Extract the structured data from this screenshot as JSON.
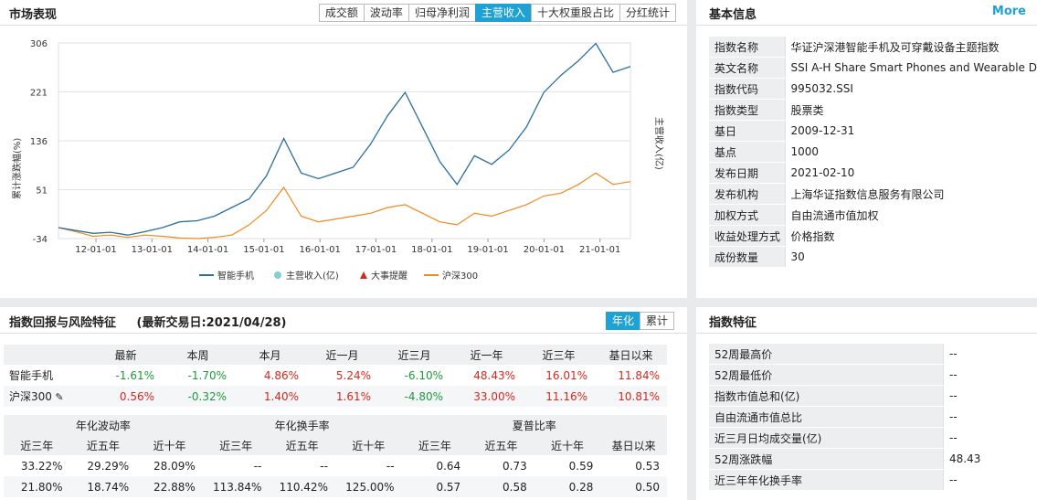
{
  "market": {
    "title": "市场表现",
    "tabs": [
      "成交额",
      "波动率",
      "归母净利润",
      "主营收入",
      "十大权重股占比",
      "分红统计"
    ],
    "active_tab": 3,
    "y_left_label": "累计涨跌幅(%)",
    "y_right_label": "主营收入(亿)",
    "y_ticks": [
      "306",
      "221",
      "136",
      "51",
      "-34"
    ],
    "x_ticks": [
      "12-01-01",
      "13-01-01",
      "14-01-01",
      "15-01-01",
      "16-01-01",
      "17-01-01",
      "18-01-01",
      "19-01-01",
      "20-01-01",
      "21-01-01"
    ],
    "legend": [
      "智能手机",
      "主营收入(亿)",
      "大事提醒",
      "沪深300"
    ]
  },
  "chart_data": {
    "type": "line",
    "x": [
      "2011-06",
      "2011-10",
      "2012-01",
      "2012-05",
      "2012-09",
      "2013-01",
      "2013-05",
      "2013-09",
      "2014-01",
      "2014-05",
      "2014-09",
      "2015-01",
      "2015-03",
      "2015-06",
      "2015-08",
      "2016-01",
      "2016-06",
      "2016-12",
      "2017-06",
      "2017-12",
      "2018-03",
      "2018-06",
      "2018-10",
      "2019-01",
      "2019-04",
      "2019-08",
      "2019-12",
      "2020-02",
      "2020-07",
      "2020-10",
      "2021-01",
      "2021-02",
      "2021-03",
      "2021-04"
    ],
    "series": [
      {
        "name": "智能手机",
        "values": [
          -15,
          -20,
          -25,
          -23,
          -28,
          -22,
          -15,
          -5,
          -3,
          5,
          20,
          35,
          75,
          140,
          80,
          70,
          80,
          90,
          130,
          180,
          220,
          160,
          100,
          60,
          110,
          95,
          120,
          160,
          220,
          250,
          275,
          305,
          255,
          265
        ]
      },
      {
        "name": "沪深300",
        "values": [
          -15,
          -22,
          -30,
          -28,
          -32,
          -28,
          -30,
          -33,
          -34,
          -32,
          -28,
          -10,
          15,
          55,
          5,
          -5,
          0,
          5,
          10,
          20,
          25,
          10,
          -5,
          -10,
          10,
          5,
          15,
          25,
          40,
          45,
          60,
          80,
          60,
          65
        ]
      }
    ],
    "ylim": [
      -34,
      306
    ]
  },
  "basic": {
    "title": "基本信息",
    "more": "More",
    "rows": [
      {
        "k": "指数名称",
        "v": "华证沪深港智能手机及可穿戴设备主题指数"
      },
      {
        "k": "英文名称",
        "v": "SSI A-H Share Smart Phones and Wearable D"
      },
      {
        "k": "指数代码",
        "v": "995032.SSI"
      },
      {
        "k": "指数类型",
        "v": "股票类"
      },
      {
        "k": "基日",
        "v": "2009-12-31"
      },
      {
        "k": "基点",
        "v": "1000"
      },
      {
        "k": "发布日期",
        "v": "2021-02-10"
      },
      {
        "k": "发布机构",
        "v": "上海华证指数信息服务有限公司"
      },
      {
        "k": "加权方式",
        "v": "自由流通市值加权"
      },
      {
        "k": "收益处理方式",
        "v": "价格指数"
      },
      {
        "k": "成份数量",
        "v": "30"
      }
    ]
  },
  "returns": {
    "title": "指数回报与风险特征",
    "subtitle": "(最新交易日:2021/04/28)",
    "toggle": [
      "年化",
      "累计"
    ],
    "headers": [
      "最新",
      "本周",
      "本月",
      "近一月",
      "近三月",
      "近一年",
      "近三年",
      "基日以来"
    ],
    "rows": [
      {
        "name": "智能手机",
        "values": [
          "-1.61%",
          "-1.70%",
          "4.86%",
          "5.24%",
          "-6.10%",
          "48.43%",
          "16.01%",
          "11.84%"
        ]
      },
      {
        "name": "沪深300",
        "values": [
          "0.56%",
          "-0.32%",
          "1.40%",
          "1.61%",
          "-4.80%",
          "33.00%",
          "11.16%",
          "10.81%"
        ]
      }
    ],
    "group_headers": [
      "年化波动率",
      "年化换手率",
      "夏普比率"
    ],
    "sub_headers": [
      "近三年",
      "近五年",
      "近十年",
      "近三年",
      "近五年",
      "近十年",
      "近三年",
      "近五年",
      "近十年",
      "基日以来"
    ],
    "risk_rows": [
      [
        "33.22%",
        "29.29%",
        "28.09%",
        "--",
        "--",
        "--",
        "0.64",
        "0.73",
        "0.59",
        "0.53"
      ],
      [
        "21.80%",
        "18.74%",
        "22.88%",
        "113.84%",
        "110.42%",
        "125.00%",
        "0.57",
        "0.58",
        "0.28",
        "0.50"
      ]
    ]
  },
  "features": {
    "title": "指数特征",
    "rows": [
      {
        "k": "52周最高价",
        "v": "--"
      },
      {
        "k": "52周最低价",
        "v": "--"
      },
      {
        "k": "指数市值总和(亿)",
        "v": "--"
      },
      {
        "k": "自由流通市值总比",
        "v": "--"
      },
      {
        "k": "近三月日均成交量(亿)",
        "v": "--"
      },
      {
        "k": "52周涨跌幅",
        "v": "48.43"
      },
      {
        "k": "近三年年化换手率",
        "v": "--"
      }
    ]
  },
  "colors": {
    "accent": "#1ea1d4",
    "series1": "#2a6f9e",
    "series2": "#f08a1e",
    "up": "#d9261c",
    "down": "#1a9b3c"
  }
}
